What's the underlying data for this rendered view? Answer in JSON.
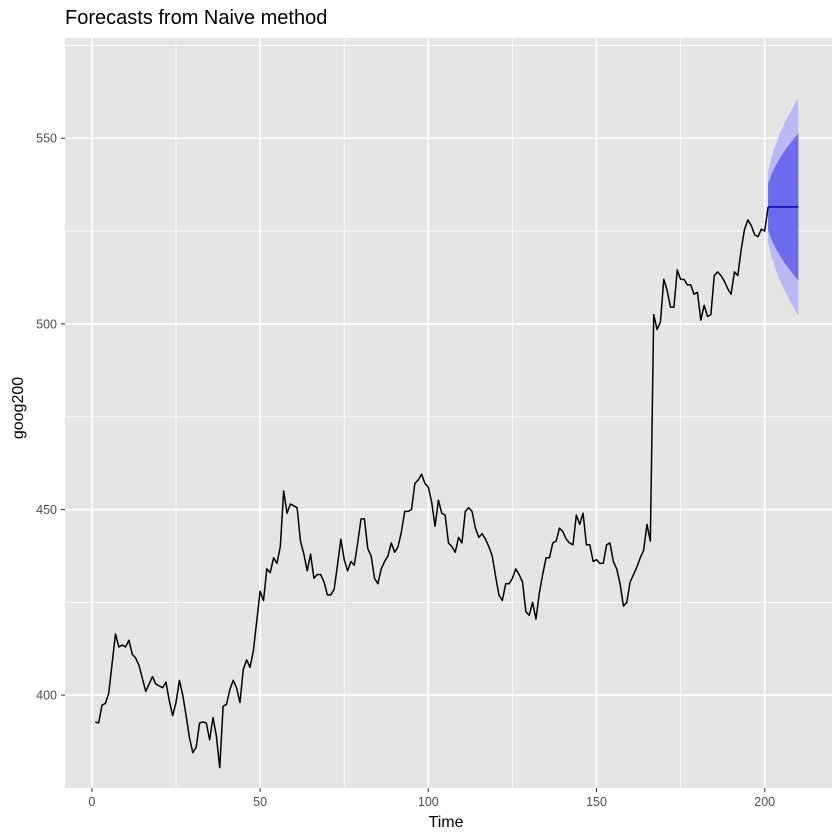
{
  "chart_data": {
    "type": "line",
    "title": "Forecasts from Naive method",
    "xlabel": "Time",
    "ylabel": "goog200",
    "xlim": [
      -8,
      220
    ],
    "ylim": [
      375,
      577
    ],
    "x_ticks": [
      0,
      50,
      100,
      150,
      200
    ],
    "y_ticks": [
      400,
      450,
      500,
      550
    ],
    "grid": true,
    "panel_background": "#e5e5e5",
    "grid_color": "#ffffff",
    "series": [
      {
        "values": [
          392.8,
          392.5,
          397.3,
          397.8,
          400.5,
          408.5,
          416.5,
          413.0,
          413.5,
          413.0,
          414.8,
          411.0,
          410.0,
          408.0,
          404.5,
          401.0,
          403.0,
          405.0,
          403.0,
          402.5,
          402.0,
          403.5,
          398.5,
          394.5,
          398.0,
          404.0,
          400.0,
          394.5,
          388.5,
          384.5,
          386.0,
          392.5,
          392.8,
          392.5,
          388.0,
          394.0,
          389.0,
          380.5,
          397.0,
          397.5,
          401.5,
          404.0,
          402.0,
          398.0,
          407.0,
          409.5,
          407.5,
          412.0,
          420.0,
          428.0,
          425.5,
          434.0,
          433.0,
          437.0,
          435.5,
          440.0,
          455.0,
          449.0,
          451.5,
          451.0,
          450.5,
          441.5,
          438.0,
          433.5,
          438.0,
          431.5,
          432.5,
          432.5,
          430.5,
          427.0,
          427.0,
          428.5,
          435.0,
          442.0,
          436.5,
          433.5,
          436.0,
          435.0,
          441.0,
          447.5,
          447.5,
          439.5,
          437.5,
          431.5,
          430.0,
          434.0,
          436.0,
          437.5,
          441.0,
          438.5,
          440.0,
          444.0,
          449.5,
          449.5,
          450.0,
          457.0,
          458.0,
          459.5,
          457.0,
          456.0,
          452.0,
          445.5,
          452.5,
          449.0,
          448.5,
          441.0,
          440.0,
          438.5,
          442.5,
          441.0,
          449.5,
          450.5,
          449.5,
          445.0,
          442.5,
          443.5,
          442.0,
          440.0,
          437.5,
          432.0,
          427.0,
          425.5,
          430.0,
          430.0,
          431.5,
          434.0,
          432.5,
          430.5,
          422.5,
          421.5,
          425.0,
          420.5,
          427.5,
          432.5,
          437.0,
          437.0,
          441.0,
          441.5,
          445.0,
          444.0,
          442.0,
          441.0,
          440.5,
          448.5,
          446.0,
          449.0,
          440.5,
          440.5,
          436.0,
          436.5,
          435.5,
          435.5,
          440.5,
          441.0,
          436.0,
          434.0,
          430.0,
          424.0,
          425.0,
          430.5,
          432.5,
          434.5,
          437.0,
          439.0,
          446.0,
          441.5,
          502.5,
          498.5,
          500.5,
          512.0,
          509.0,
          504.5,
          504.5,
          514.5,
          512.0,
          512.0,
          510.5,
          510.5,
          508.0,
          508.5,
          501.0,
          505.0,
          502.0,
          502.5,
          513.0,
          514.0,
          513.0,
          511.5,
          509.5,
          508.0,
          514.0,
          513.0,
          520.0,
          525.5,
          528.0,
          526.5,
          524.0,
          523.5,
          525.5,
          525.0,
          531.5
        ],
        "x_start": 1,
        "color": "#000000"
      }
    ],
    "forecast": {
      "x_start": 201,
      "x_end": 210,
      "point": 531.5,
      "line_color": "#0000aa",
      "intervals": [
        {
          "level": 80,
          "color": "#6b6bec",
          "lower": [
            525.3,
            522.8,
            520.8,
            519.2,
            517.7,
            516.3,
            515.1,
            513.9,
            512.8,
            511.7
          ],
          "upper": [
            537.7,
            540.2,
            542.2,
            543.8,
            545.3,
            546.7,
            547.9,
            549.1,
            550.2,
            551.3
          ]
        },
        {
          "level": 95,
          "color": "#b9b9f5",
          "lower": [
            522.0,
            518.3,
            515.3,
            512.9,
            510.7,
            508.8,
            507.0,
            505.3,
            503.7,
            502.2
          ],
          "upper": [
            541.0,
            544.7,
            547.7,
            550.1,
            552.3,
            554.2,
            556.0,
            557.7,
            559.3,
            560.8
          ]
        }
      ]
    }
  }
}
